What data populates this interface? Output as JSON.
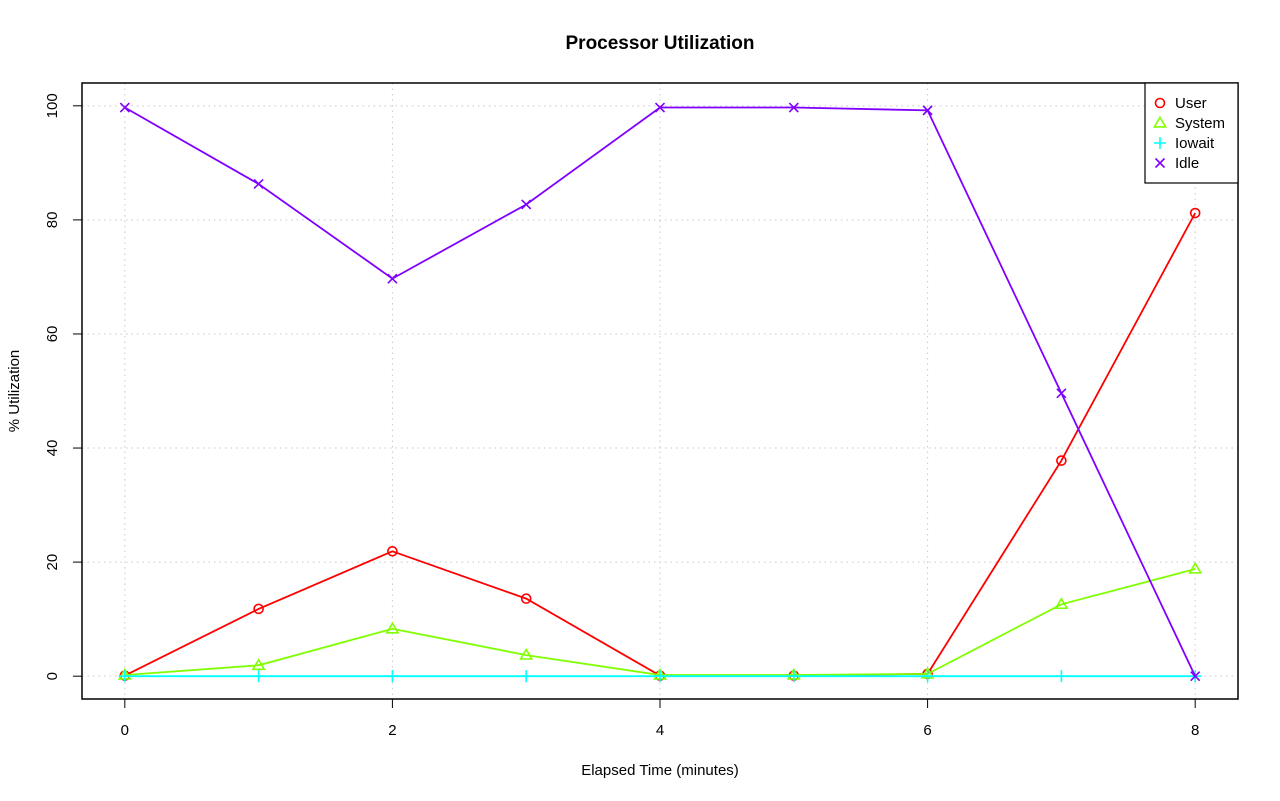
{
  "chart_data": {
    "type": "line",
    "title": "Processor Utilization",
    "xlabel": "Elapsed Time (minutes)",
    "ylabel": "% Utilization",
    "x": [
      0,
      1,
      2,
      3,
      4,
      5,
      6,
      7,
      8
    ],
    "xlim": [
      -0.32,
      8.32
    ],
    "ylim": [
      -4,
      104
    ],
    "xticks": [
      0,
      2,
      4,
      6,
      8
    ],
    "yticks": [
      0,
      20,
      40,
      60,
      80,
      100
    ],
    "grid": true,
    "legend_position": "top-right",
    "series": [
      {
        "name": "User",
        "color": "#ff0000",
        "marker": "circle",
        "values": [
          0.1,
          11.8,
          21.9,
          13.6,
          0.1,
          0.1,
          0.4,
          37.8,
          81.2
        ]
      },
      {
        "name": "System",
        "color": "#80ff00",
        "marker": "triangle",
        "values": [
          0.2,
          1.9,
          8.3,
          3.7,
          0.2,
          0.2,
          0.4,
          12.6,
          18.8
        ]
      },
      {
        "name": "Iowait",
        "color": "#00ffff",
        "marker": "plus",
        "values": [
          0,
          0,
          0,
          0,
          0,
          0,
          0,
          0,
          0
        ]
      },
      {
        "name": "Idle",
        "color": "#8000ff",
        "marker": "cross",
        "values": [
          99.7,
          86.3,
          69.7,
          82.7,
          99.7,
          99.7,
          99.2,
          49.6,
          0
        ]
      }
    ]
  }
}
